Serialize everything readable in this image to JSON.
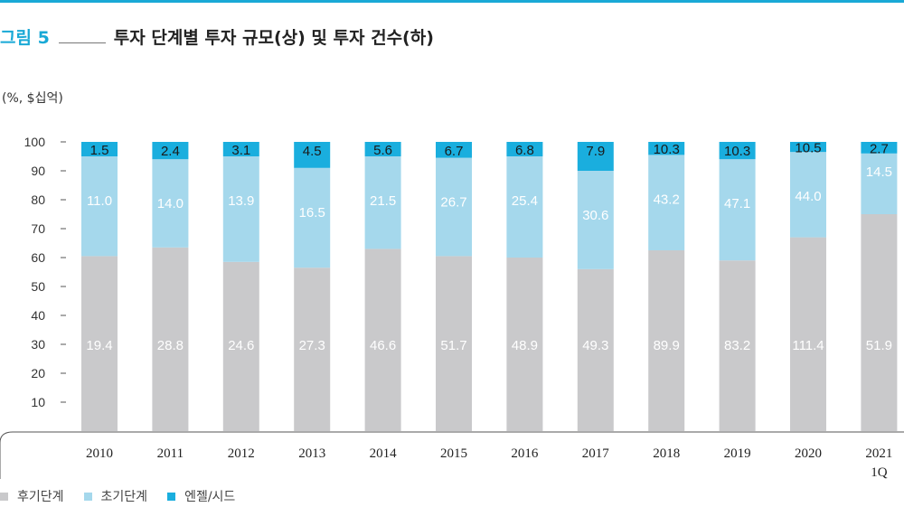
{
  "figure": {
    "label": "그림 5",
    "title": "투자 단계별 투자 규모(상) 및 투자 건수(하)",
    "unit": "(%, $십억)"
  },
  "colors": {
    "accent": "#19a9d6",
    "late": "#c9c9cb",
    "early": "#a5d8ec",
    "angel": "#1aaede"
  },
  "legend": {
    "late": "후기단계",
    "early": "초기단계",
    "angel": "엔젤/시드"
  },
  "chart_data": {
    "type": "bar",
    "stacked": true,
    "categories": [
      "2010",
      "2011",
      "2012",
      "2013",
      "2014",
      "2015",
      "2016",
      "2017",
      "2018",
      "2019",
      "2020",
      "2021\n1Q"
    ],
    "yticks": [
      "100",
      "90",
      "80",
      "70",
      "60",
      "50",
      "40",
      "30",
      "20",
      "10"
    ],
    "ylim": [
      0,
      100
    ],
    "series": [
      {
        "name": "후기단계",
        "percent": [
          60.5,
          63.5,
          58.5,
          56.5,
          63.0,
          60.5,
          60.0,
          56.0,
          62.5,
          59.0,
          67.0,
          75.0
        ],
        "labels": [
          "19.4",
          "28.8",
          "24.6",
          "27.3",
          "46.6",
          "51.7",
          "48.9",
          "49.3",
          "89.9",
          "83.2",
          "111.4",
          "51.9"
        ]
      },
      {
        "name": "초기단계",
        "percent": [
          34.5,
          30.5,
          36.5,
          34.5,
          32.0,
          34.0,
          35.0,
          34.0,
          33.0,
          35.0,
          29.5,
          21.0
        ],
        "labels": [
          "11.0",
          "14.0",
          "13.9",
          "16.5",
          "21.5",
          "26.7",
          "25.4",
          "30.6",
          "43.2",
          "47.1",
          "44.0",
          "14.5"
        ]
      },
      {
        "name": "엔젤/시드",
        "percent": [
          5.0,
          6.0,
          5.0,
          9.0,
          5.0,
          5.5,
          5.0,
          10.0,
          4.5,
          6.0,
          3.5,
          4.0
        ],
        "labels": [
          "1.5",
          "2.4",
          "3.1",
          "4.5",
          "5.6",
          "6.7",
          "6.8",
          "7.9",
          "10.3",
          "10.3",
          "10.5",
          "2.7"
        ]
      }
    ]
  }
}
